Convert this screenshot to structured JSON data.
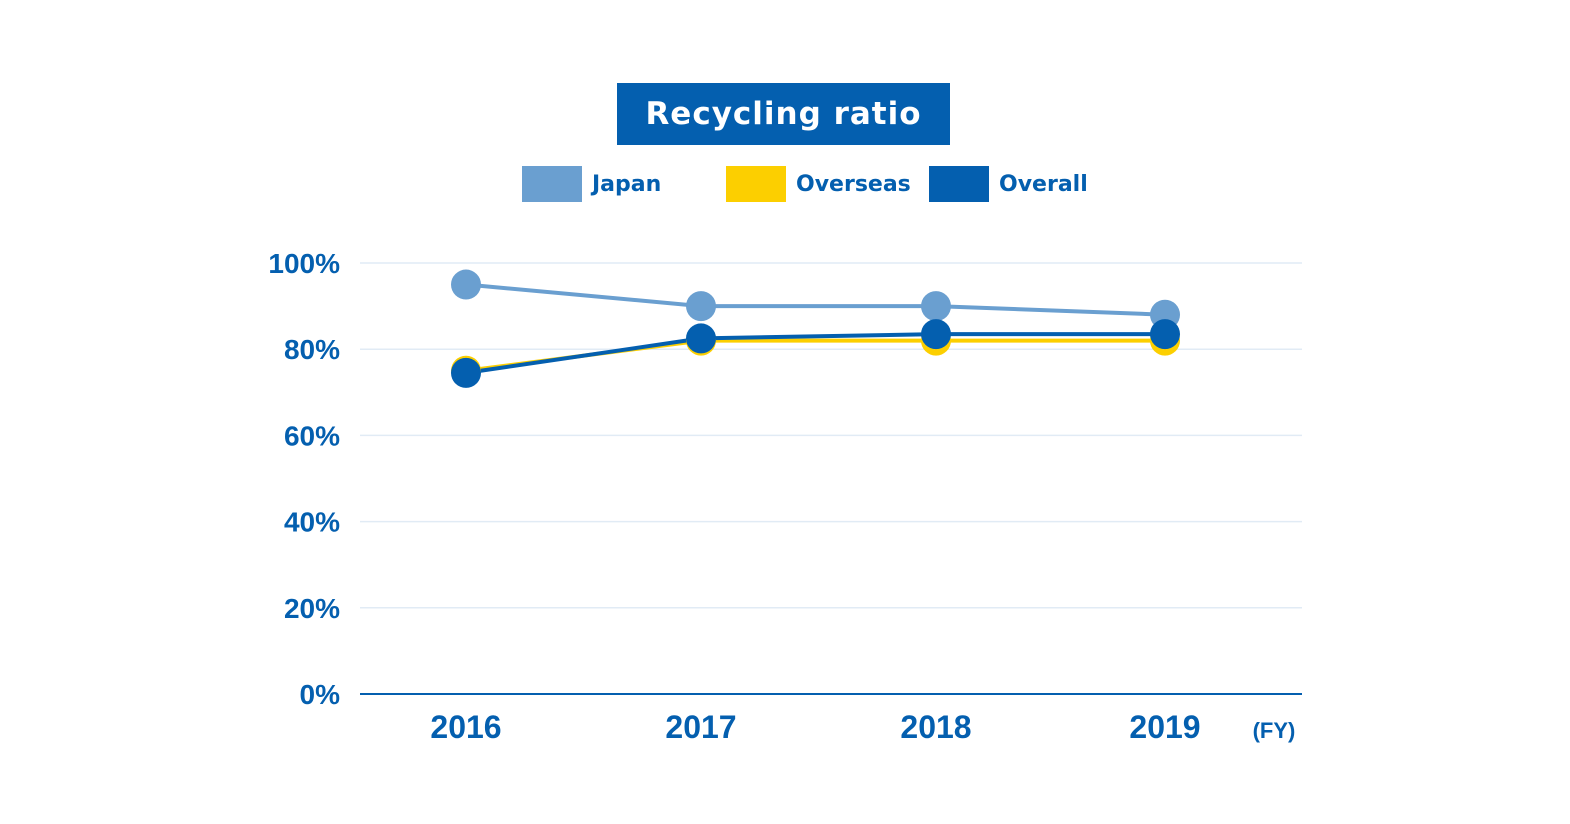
{
  "chart_data": {
    "type": "line",
    "title": "Recycling ratio",
    "categories": [
      "2016",
      "2017",
      "2018",
      "2019"
    ],
    "x_unit_label": "(FY)",
    "y_ticks": [
      "0%",
      "20%",
      "40%",
      "60%",
      "80%",
      "100%"
    ],
    "ylim": [
      0,
      100
    ],
    "legend_position": "top-center",
    "grid": true,
    "series": [
      {
        "name": "Japan",
        "color": "#6a9fd0",
        "values": [
          95,
          90,
          90,
          88
        ]
      },
      {
        "name": "Overseas",
        "color": "#fccf00",
        "values": [
          75,
          82,
          82,
          82
        ]
      },
      {
        "name": "Overall",
        "color": "#045faf",
        "values": [
          74.5,
          82.5,
          83.5,
          83.5
        ]
      }
    ]
  }
}
